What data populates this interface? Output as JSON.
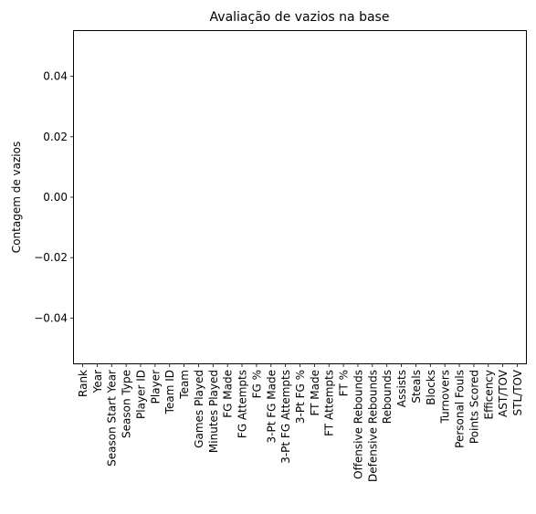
{
  "chart_data": {
    "type": "bar",
    "title": "Avaliação de vazios na base",
    "xlabel": "",
    "ylabel": "Contagem de vazios",
    "ylim": [
      -0.055,
      0.055
    ],
    "yticks": [
      "−0.04",
      "−0.02",
      "0.00",
      "0.02",
      "0.04"
    ],
    "ytick_values": [
      -0.04,
      -0.02,
      0.0,
      0.02,
      0.04
    ],
    "grid": false,
    "categories": [
      "Rank",
      "Year",
      "Season Start Year",
      "Season Type",
      "Player ID",
      "Player",
      "Team ID",
      "Team",
      "Games Played",
      "Minutes Played",
      "FG Made",
      "FG Attempts",
      "FG %",
      "3-Pt FG Made",
      "3-Pt FG Attempts",
      "3-Pt FG %",
      "FT Made",
      "FT Attempts",
      "FT %",
      "Offensive Rebounds",
      "Defensive Rebounds",
      "Rebounds",
      "Assists",
      "Steals",
      "Blocks",
      "Turnovers",
      "Personal Fouls",
      "Points Scored",
      "Efficency",
      "AST/TOV",
      "STL/TOV"
    ],
    "values": [
      0,
      0,
      0,
      0,
      0,
      0,
      0,
      0,
      0,
      0,
      0,
      0,
      0,
      0,
      0,
      0,
      0,
      0,
      0,
      0,
      0,
      0,
      0,
      0,
      0,
      0,
      0,
      0,
      0,
      0,
      0
    ]
  }
}
